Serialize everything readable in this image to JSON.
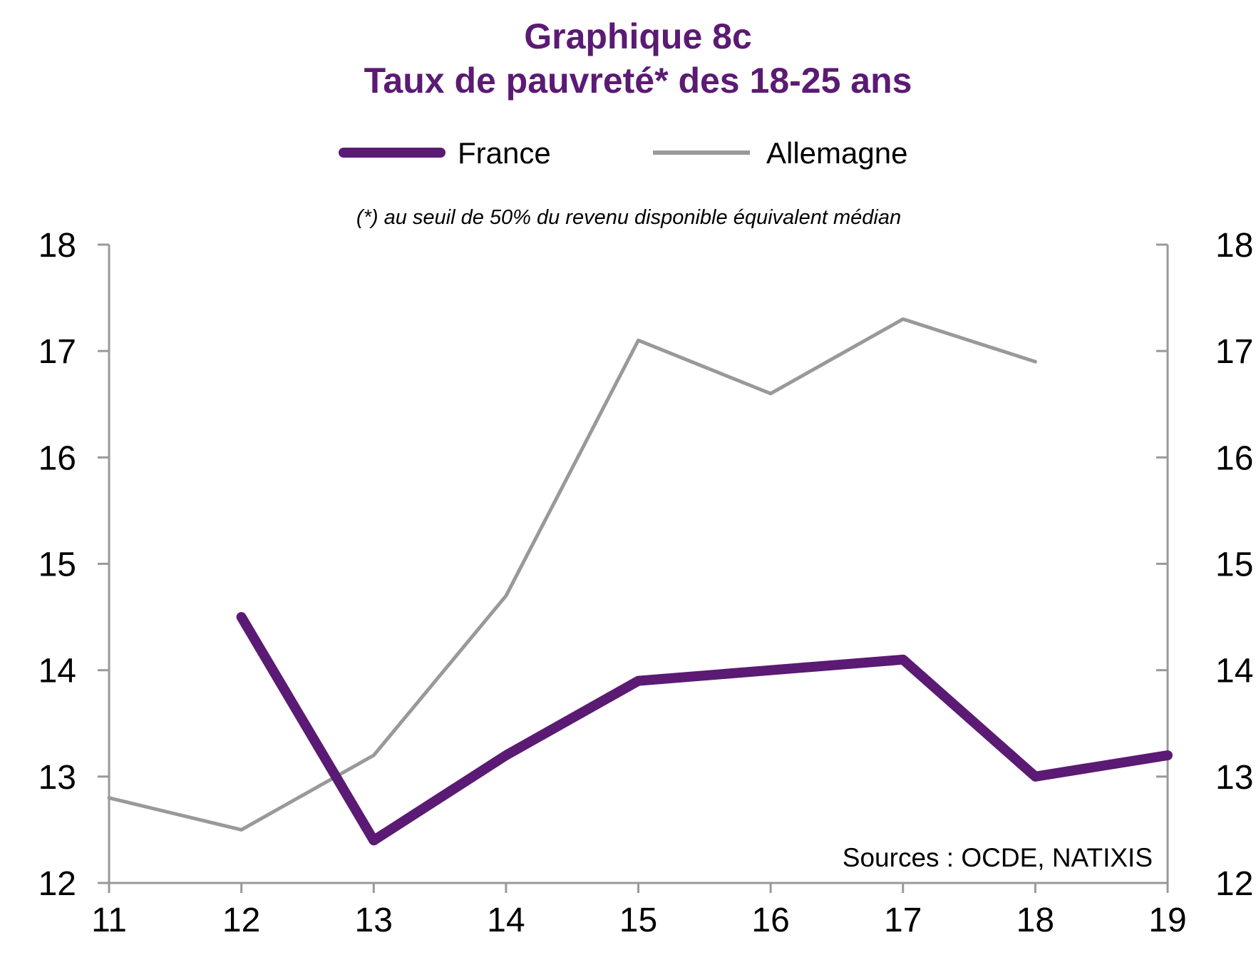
{
  "chart_data": {
    "type": "line",
    "title": "Graphique 8c",
    "subtitle": "Taux de pauvreté* des 18-25 ans",
    "note": "(*) au seuil de 50% du revenu disponible équivalent médian",
    "source": "Sources :  OCDE, NATIXIS",
    "x": [
      "11",
      "12",
      "13",
      "14",
      "15",
      "16",
      "17",
      "18",
      "19"
    ],
    "xlabel": "",
    "ylabel": "",
    "ylim": [
      12,
      18
    ],
    "yticks": [
      "12",
      "13",
      "14",
      "15",
      "16",
      "17",
      "18"
    ],
    "y2ticks": [
      "12",
      "13",
      "14",
      "15",
      "16",
      "17",
      "18"
    ],
    "grid": false,
    "legend_position": "top-center",
    "series": [
      {
        "name": "France",
        "color": "#5b1a73",
        "values": [
          null,
          14.5,
          12.4,
          13.2,
          13.9,
          14.0,
          14.1,
          13.0,
          13.2
        ]
      },
      {
        "name": "Allemagne",
        "color": "#999999",
        "values": [
          12.8,
          12.5,
          13.2,
          14.7,
          17.1,
          16.6,
          17.3,
          16.9,
          null
        ]
      }
    ]
  }
}
